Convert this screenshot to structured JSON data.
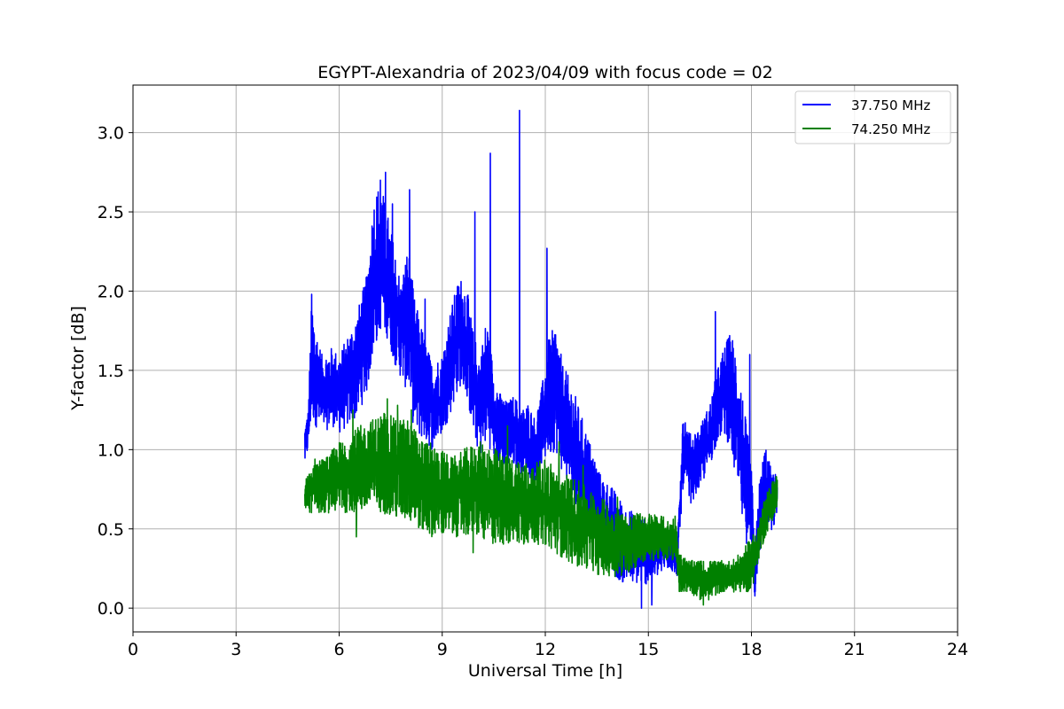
{
  "chart_data": {
    "type": "line",
    "title": "EGYPT-Alexandria of 2023/04/09 with focus code = 02",
    "xlabel": "Universal Time [h]",
    "ylabel": "Y-factor [dB]",
    "xlim": [
      0,
      24
    ],
    "ylim": [
      -0.15,
      3.3
    ],
    "xticks": [
      0,
      3,
      6,
      9,
      12,
      15,
      18,
      21,
      24
    ],
    "yticks": [
      0.0,
      0.5,
      1.0,
      1.5,
      2.0,
      2.5,
      3.0
    ],
    "xtick_labels": [
      "0",
      "3",
      "6",
      "9",
      "12",
      "15",
      "18",
      "21",
      "24"
    ],
    "ytick_labels": [
      "0.0",
      "0.5",
      "1.0",
      "1.5",
      "2.0",
      "2.5",
      "3.0"
    ],
    "grid": true,
    "legend_position": "top-right",
    "series": [
      {
        "name": "37.750 MHz",
        "color": "#0000ff",
        "envelope": {
          "x": [
            5.0,
            5.1,
            5.2,
            5.3,
            5.5,
            5.8,
            6.0,
            6.3,
            6.5,
            6.8,
            7.0,
            7.2,
            7.4,
            7.6,
            7.8,
            8.0,
            8.2,
            8.5,
            8.7,
            9.0,
            9.2,
            9.5,
            9.7,
            9.9,
            10.1,
            10.3,
            10.5,
            10.7,
            10.9,
            11.1,
            11.3,
            11.5,
            11.7,
            11.9,
            12.1,
            12.3,
            12.5,
            12.8,
            13.0,
            13.3,
            13.6,
            14.0,
            14.3,
            14.6,
            15.0,
            15.3,
            15.6,
            15.85,
            16.0,
            16.2,
            16.5,
            16.8,
            17.0,
            17.2,
            17.4,
            17.6,
            17.8,
            18.0,
            18.1,
            18.2,
            18.4,
            18.6,
            18.75
          ],
          "upper": [
            1.15,
            1.25,
            1.95,
            1.8,
            1.6,
            1.65,
            1.6,
            1.75,
            1.85,
            2.1,
            2.6,
            2.7,
            2.5,
            2.3,
            2.05,
            2.3,
            1.95,
            1.7,
            1.55,
            1.6,
            1.85,
            2.1,
            2.05,
            1.75,
            1.6,
            1.85,
            1.5,
            1.35,
            1.3,
            1.35,
            1.25,
            1.3,
            1.2,
            1.4,
            1.7,
            1.8,
            1.55,
            1.4,
            1.25,
            1.05,
            0.85,
            0.75,
            0.65,
            0.6,
            0.55,
            0.55,
            0.5,
            0.45,
            1.3,
            1.1,
            1.15,
            1.3,
            1.5,
            1.65,
            1.75,
            1.6,
            1.25,
            0.9,
            0.35,
            0.75,
            1.05,
            0.85,
            0.85
          ],
          "lower": [
            0.9,
            1.0,
            1.2,
            1.15,
            1.1,
            1.15,
            1.1,
            1.15,
            1.2,
            1.35,
            1.6,
            1.75,
            1.7,
            1.55,
            1.45,
            1.35,
            1.1,
            1.05,
            1.0,
            1.1,
            1.2,
            1.4,
            1.35,
            1.1,
            0.95,
            1.05,
            0.95,
            0.9,
            0.9,
            0.9,
            0.85,
            0.85,
            0.75,
            0.9,
            0.95,
            1.0,
            0.85,
            0.7,
            0.6,
            0.5,
            0.35,
            0.2,
            0.15,
            0.15,
            0.15,
            0.2,
            0.25,
            0.2,
            0.75,
            0.65,
            0.75,
            0.9,
            1.05,
            1.1,
            1.0,
            0.7,
            0.45,
            0.3,
            0.05,
            0.3,
            0.5,
            0.45,
            0.6
          ]
        },
        "spikes": [
          [
            5.2,
            1.98
          ],
          [
            7.2,
            2.7
          ],
          [
            7.35,
            2.75
          ],
          [
            7.55,
            2.55
          ],
          [
            8.05,
            2.64
          ],
          [
            8.5,
            1.95
          ],
          [
            9.95,
            2.5
          ],
          [
            10.4,
            2.87
          ],
          [
            11.25,
            3.14
          ],
          [
            12.05,
            2.27
          ],
          [
            16.95,
            1.87
          ],
          [
            17.95,
            1.6
          ]
        ],
        "dips": [
          [
            14.8,
            0.0
          ],
          [
            15.1,
            0.02
          ]
        ]
      },
      {
        "name": "74.250 MHz",
        "color": "#008000",
        "envelope": {
          "x": [
            5.0,
            5.3,
            5.6,
            6.0,
            6.3,
            6.6,
            7.0,
            7.3,
            7.6,
            8.0,
            8.3,
            8.6,
            9.0,
            9.3,
            9.6,
            10.0,
            10.3,
            10.6,
            11.0,
            11.3,
            11.6,
            12.0,
            12.3,
            12.6,
            13.0,
            13.3,
            13.6,
            14.0,
            14.3,
            14.6,
            15.0,
            15.3,
            15.6,
            15.8,
            15.9,
            16.2,
            16.5,
            16.8,
            17.1,
            17.4,
            17.7,
            18.0,
            18.2,
            18.4,
            18.6,
            18.75
          ],
          "upper": [
            0.8,
            0.95,
            0.95,
            1.05,
            1.1,
            1.15,
            1.2,
            1.25,
            1.2,
            1.2,
            1.1,
            1.05,
            1.0,
            0.95,
            1.0,
            1.05,
            1.05,
            1.0,
            0.95,
            0.95,
            0.9,
            0.95,
            0.9,
            0.85,
            0.8,
            0.75,
            0.7,
            0.65,
            0.6,
            0.6,
            0.6,
            0.6,
            0.55,
            0.6,
            0.35,
            0.3,
            0.3,
            0.3,
            0.3,
            0.3,
            0.35,
            0.45,
            0.55,
            0.7,
            0.8,
            0.85
          ],
          "lower": [
            0.6,
            0.6,
            0.6,
            0.6,
            0.6,
            0.6,
            0.6,
            0.6,
            0.55,
            0.55,
            0.5,
            0.45,
            0.45,
            0.45,
            0.45,
            0.45,
            0.4,
            0.4,
            0.4,
            0.4,
            0.4,
            0.4,
            0.35,
            0.3,
            0.25,
            0.25,
            0.2,
            0.2,
            0.2,
            0.25,
            0.3,
            0.3,
            0.3,
            0.3,
            0.1,
            0.1,
            0.05,
            0.05,
            0.1,
            0.1,
            0.1,
            0.1,
            0.3,
            0.45,
            0.55,
            0.6
          ]
        },
        "spikes": [
          [
            6.4,
            1.25
          ],
          [
            7.4,
            1.32
          ],
          [
            7.7,
            1.28
          ],
          [
            8.1,
            1.25
          ],
          [
            10.9,
            1.15
          ],
          [
            12.4,
            1.05
          ],
          [
            13.1,
            0.9
          ],
          [
            14.1,
            0.7
          ]
        ],
        "dips": [
          [
            6.5,
            0.45
          ],
          [
            9.9,
            0.35
          ],
          [
            16.6,
            0.02
          ]
        ]
      }
    ]
  }
}
